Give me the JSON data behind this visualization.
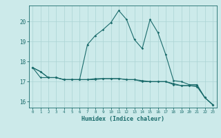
{
  "x": [
    0,
    1,
    2,
    3,
    4,
    5,
    6,
    7,
    8,
    9,
    10,
    11,
    12,
    13,
    14,
    15,
    16,
    17,
    18,
    19,
    20,
    21,
    22,
    23
  ],
  "line1": [
    17.7,
    17.5,
    17.2,
    17.2,
    17.1,
    17.1,
    17.1,
    17.1,
    17.1,
    17.15,
    17.15,
    17.15,
    17.1,
    17.1,
    17.05,
    17.0,
    17.0,
    17.0,
    16.9,
    16.8,
    16.8,
    16.8,
    16.2,
    15.85
  ],
  "line2": [
    17.7,
    17.5,
    17.2,
    17.2,
    17.1,
    17.1,
    17.1,
    18.85,
    19.3,
    19.6,
    19.95,
    20.55,
    20.1,
    19.1,
    18.65,
    20.1,
    19.45,
    18.35,
    17.05,
    17.0,
    16.85,
    16.85,
    16.2,
    15.85
  ],
  "line3": [
    17.7,
    17.2,
    17.2,
    17.2,
    17.1,
    17.1,
    17.1,
    17.1,
    17.15,
    17.15,
    17.15,
    17.15,
    17.1,
    17.1,
    17.0,
    17.0,
    17.0,
    17.0,
    16.85,
    16.8,
    16.8,
    16.75,
    16.2,
    15.85
  ],
  "xlim": [
    -0.5,
    23.5
  ],
  "ylim": [
    15.7,
    20.8
  ],
  "yticks": [
    16,
    17,
    18,
    19,
    20
  ],
  "xticks": [
    0,
    1,
    2,
    3,
    4,
    5,
    6,
    7,
    8,
    9,
    10,
    11,
    12,
    13,
    14,
    15,
    16,
    17,
    18,
    19,
    20,
    21,
    22,
    23
  ],
  "xlabel": "Humidex (Indice chaleur)",
  "line_color": "#1a6b6b",
  "bg_color": "#cceaea",
  "grid_color": "#aad4d4"
}
